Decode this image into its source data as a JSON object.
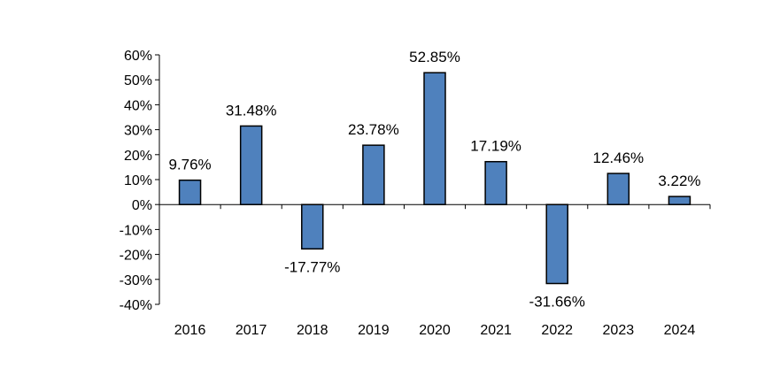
{
  "chart_data": {
    "type": "bar",
    "title": "",
    "xlabel": "",
    "ylabel": "",
    "categories": [
      "2016",
      "2017",
      "2018",
      "2019",
      "2020",
      "2021",
      "2022",
      "2023",
      "2024"
    ],
    "values": [
      9.76,
      31.48,
      -17.77,
      23.78,
      52.85,
      17.19,
      -31.66,
      12.46,
      3.22
    ],
    "data_labels": [
      "9.76%",
      "31.48%",
      "-17.77%",
      "23.78%",
      "52.85%",
      "17.19%",
      "-31.66%",
      "12.46%",
      "3.22%"
    ],
    "ylim": [
      -40,
      60
    ],
    "y_ticks": [
      60,
      50,
      40,
      30,
      20,
      10,
      0,
      -10,
      -20,
      -30,
      -40
    ],
    "y_tick_labels": [
      "60%",
      "50%",
      "40%",
      "30%",
      "20%",
      "10%",
      "0%",
      "-10%",
      "-20%",
      "-30%",
      "-40%"
    ],
    "grid": false,
    "legend": "none",
    "bar_color": "#4F81BD",
    "bar_edge_color": "#000000"
  }
}
